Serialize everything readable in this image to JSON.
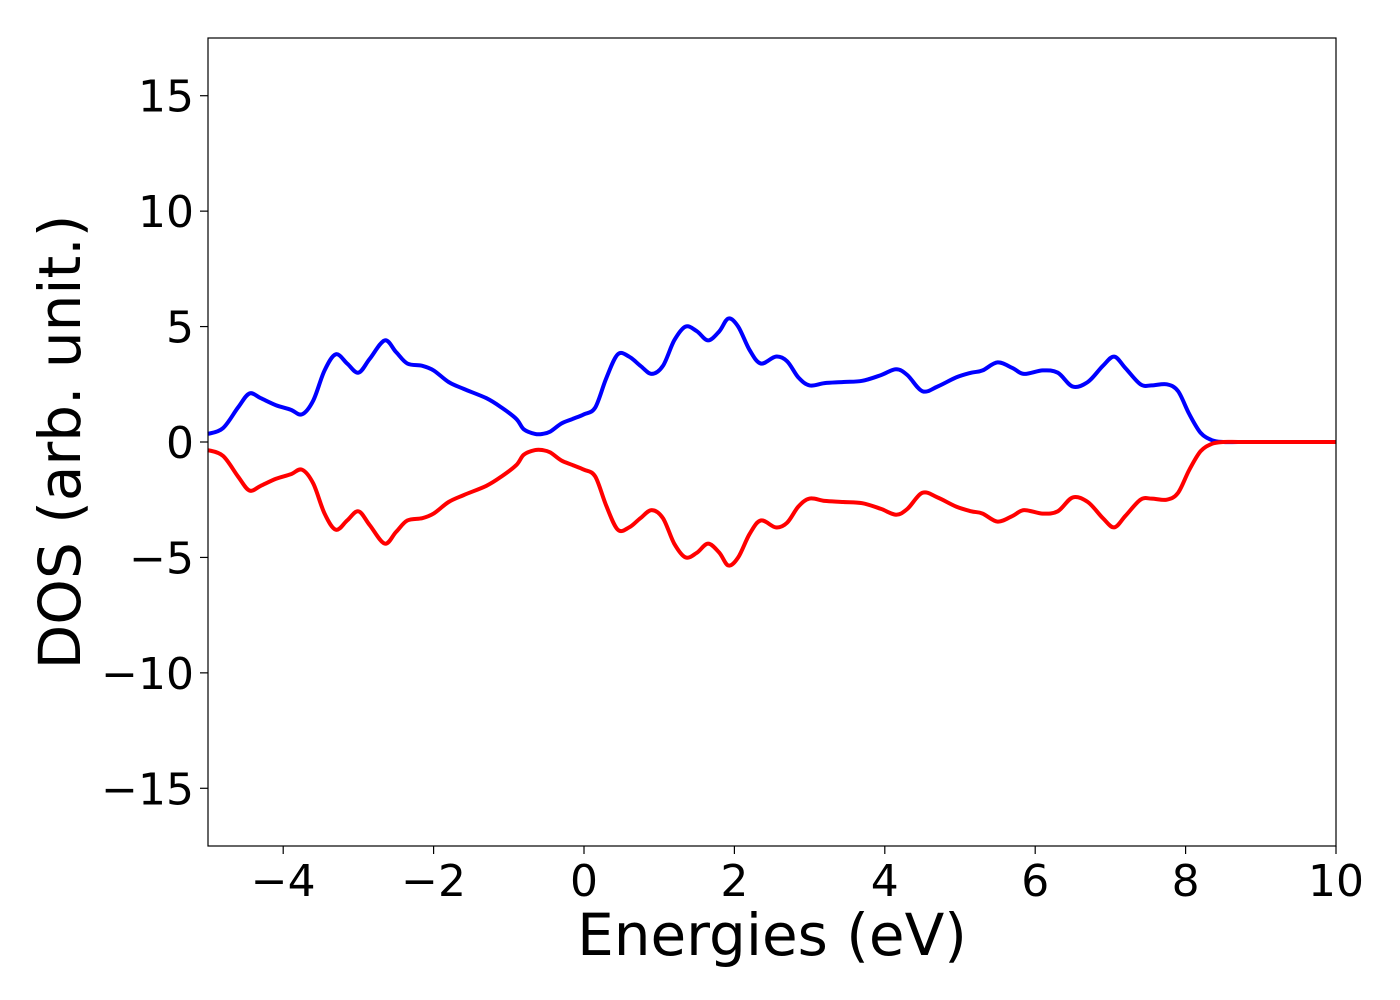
{
  "chart_data": {
    "type": "line",
    "title": "",
    "xlabel": "Energies (eV)",
    "ylabel": "DOS (arb. unit.)",
    "xlim": [
      -5,
      10
    ],
    "ylim": [
      -17.5,
      17.5
    ],
    "grid": false,
    "x_ticks": [
      -4,
      -2,
      0,
      2,
      4,
      6,
      8,
      10
    ],
    "x_tick_labels": [
      "−4",
      "−2",
      "0",
      "2",
      "4",
      "6",
      "8",
      "10"
    ],
    "y_ticks": [
      15,
      10,
      5,
      0,
      -5,
      -10,
      -15
    ],
    "y_tick_labels": [
      "15",
      "10",
      "5",
      "0",
      "−5",
      "−10",
      "−15"
    ],
    "series": [
      {
        "color": "#0000ff",
        "x": [
          -5.0,
          -4.8,
          -4.6,
          -4.45,
          -4.3,
          -4.1,
          -3.9,
          -3.75,
          -3.6,
          -3.45,
          -3.3,
          -3.15,
          -3.0,
          -2.85,
          -2.65,
          -2.5,
          -2.35,
          -2.15,
          -2.0,
          -1.8,
          -1.6,
          -1.3,
          -1.1,
          -0.9,
          -0.8,
          -0.65,
          -0.55,
          -0.45,
          -0.3,
          -0.15,
          0.0,
          0.15,
          0.3,
          0.45,
          0.6,
          0.75,
          0.9,
          1.05,
          1.2,
          1.35,
          1.5,
          1.65,
          1.8,
          1.92,
          2.05,
          2.2,
          2.35,
          2.55,
          2.7,
          2.85,
          3.0,
          3.2,
          3.45,
          3.7,
          3.95,
          4.15,
          4.3,
          4.5,
          4.7,
          4.95,
          5.15,
          5.3,
          5.5,
          5.7,
          5.85,
          6.1,
          6.3,
          6.5,
          6.7,
          6.9,
          7.05,
          7.2,
          7.4,
          7.55,
          7.75,
          7.9,
          8.05,
          8.2,
          8.35,
          8.5,
          8.7,
          9.0,
          9.5,
          10.0
        ],
        "y": [
          0.35,
          0.6,
          1.5,
          2.1,
          1.9,
          1.6,
          1.4,
          1.2,
          1.8,
          3.1,
          3.8,
          3.4,
          3.0,
          3.6,
          4.4,
          3.9,
          3.4,
          3.3,
          3.1,
          2.6,
          2.3,
          1.9,
          1.5,
          1.0,
          0.55,
          0.35,
          0.35,
          0.45,
          0.8,
          1.0,
          1.2,
          1.5,
          2.8,
          3.8,
          3.7,
          3.3,
          2.95,
          3.3,
          4.4,
          5.0,
          4.8,
          4.4,
          4.8,
          5.35,
          5.0,
          4.0,
          3.4,
          3.7,
          3.5,
          2.8,
          2.45,
          2.55,
          2.6,
          2.65,
          2.9,
          3.15,
          2.9,
          2.2,
          2.4,
          2.8,
          3.0,
          3.1,
          3.45,
          3.2,
          2.95,
          3.1,
          3.0,
          2.4,
          2.6,
          3.3,
          3.7,
          3.2,
          2.5,
          2.45,
          2.5,
          2.2,
          1.2,
          0.4,
          0.08,
          0.0,
          0.0,
          0.0,
          0.0,
          0.0
        ]
      },
      {
        "color": "#ff0000",
        "x": [
          -5.0,
          -4.8,
          -4.6,
          -4.45,
          -4.3,
          -4.1,
          -3.9,
          -3.75,
          -3.6,
          -3.45,
          -3.3,
          -3.15,
          -3.0,
          -2.85,
          -2.65,
          -2.5,
          -2.35,
          -2.15,
          -2.0,
          -1.8,
          -1.6,
          -1.3,
          -1.1,
          -0.9,
          -0.8,
          -0.65,
          -0.55,
          -0.45,
          -0.3,
          -0.15,
          0.0,
          0.15,
          0.3,
          0.45,
          0.6,
          0.75,
          0.9,
          1.05,
          1.2,
          1.35,
          1.5,
          1.65,
          1.8,
          1.92,
          2.05,
          2.2,
          2.35,
          2.55,
          2.7,
          2.85,
          3.0,
          3.2,
          3.45,
          3.7,
          3.95,
          4.15,
          4.3,
          4.5,
          4.7,
          4.95,
          5.15,
          5.3,
          5.5,
          5.7,
          5.85,
          6.1,
          6.3,
          6.5,
          6.7,
          6.9,
          7.05,
          7.2,
          7.4,
          7.55,
          7.75,
          7.9,
          8.05,
          8.2,
          8.35,
          8.5,
          8.7,
          9.0,
          9.5,
          10.0
        ],
        "y": [
          -0.35,
          -0.6,
          -1.5,
          -2.1,
          -1.9,
          -1.6,
          -1.4,
          -1.2,
          -1.8,
          -3.1,
          -3.8,
          -3.4,
          -3.0,
          -3.6,
          -4.4,
          -3.9,
          -3.4,
          -3.3,
          -3.1,
          -2.6,
          -2.3,
          -1.9,
          -1.5,
          -1.0,
          -0.55,
          -0.35,
          -0.35,
          -0.45,
          -0.8,
          -1.0,
          -1.2,
          -1.5,
          -2.8,
          -3.8,
          -3.7,
          -3.3,
          -2.95,
          -3.3,
          -4.4,
          -5.0,
          -4.8,
          -4.4,
          -4.8,
          -5.35,
          -5.0,
          -4.0,
          -3.4,
          -3.7,
          -3.5,
          -2.8,
          -2.45,
          -2.55,
          -2.6,
          -2.65,
          -2.9,
          -3.15,
          -2.9,
          -2.2,
          -2.4,
          -2.8,
          -3.0,
          -3.1,
          -3.45,
          -3.2,
          -2.95,
          -3.1,
          -3.0,
          -2.4,
          -2.6,
          -3.3,
          -3.7,
          -3.2,
          -2.5,
          -2.45,
          -2.5,
          -2.2,
          -1.2,
          -0.4,
          -0.08,
          0.0,
          0.0,
          0.0,
          0.0,
          0.0
        ]
      }
    ]
  }
}
